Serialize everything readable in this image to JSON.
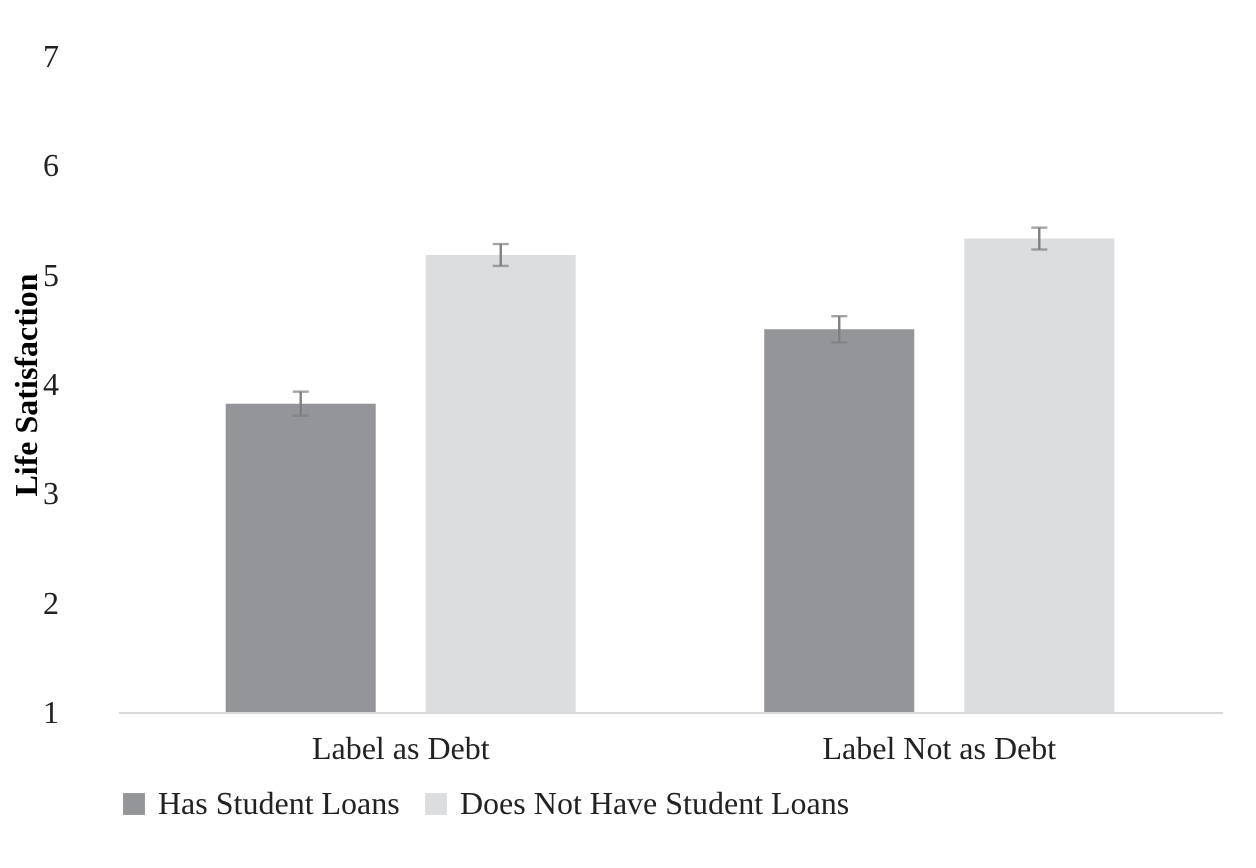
{
  "chart_data": {
    "type": "bar",
    "ylabel": "Life Satisfaction",
    "categories": [
      "Label as Debt",
      "Label Not as Debt"
    ],
    "series": [
      {
        "name": "Has Student Loans",
        "color": "#939598",
        "values": [
          3.82,
          4.5
        ],
        "errors": [
          0.11,
          0.12
        ]
      },
      {
        "name": "Does Not Have Student Loans",
        "color": "#dcdddf",
        "values": [
          5.18,
          5.33
        ],
        "errors": [
          0.1,
          0.1
        ]
      }
    ],
    "ylim": [
      1,
      7
    ],
    "yticks": [
      1,
      2,
      3,
      4,
      5,
      6,
      7
    ],
    "grid": false,
    "legend": "bottom"
  }
}
